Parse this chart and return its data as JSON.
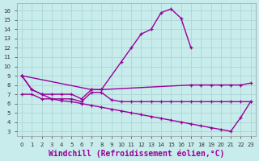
{
  "background_color": "#c8ecec",
  "grid_color": "#b0d8d8",
  "line_color": "#990099",
  "xlabel": "Windchill (Refroidissement éolien,°C)",
  "xlim": [
    -0.5,
    23.5
  ],
  "ylim": [
    2.5,
    16.8
  ],
  "yticks": [
    3,
    4,
    5,
    6,
    7,
    8,
    9,
    10,
    11,
    12,
    13,
    14,
    15,
    16
  ],
  "xticks": [
    0,
    1,
    2,
    3,
    4,
    5,
    6,
    7,
    8,
    9,
    10,
    11,
    12,
    13,
    14,
    15,
    16,
    17,
    18,
    19,
    20,
    21,
    22,
    23
  ],
  "series": [
    {
      "x": [
        0,
        1,
        2,
        3,
        4,
        5,
        6,
        7,
        8,
        10,
        11,
        12,
        13,
        14,
        15,
        16,
        17
      ],
      "y": [
        9,
        7.5,
        7.0,
        7.0,
        7.0,
        7.0,
        6.5,
        7.5,
        7.5,
        10.5,
        12.0,
        13.5,
        14.0,
        15.8,
        16.2,
        15.2,
        12.0
      ]
    },
    {
      "x": [
        0,
        7,
        8,
        17,
        18,
        19,
        20,
        21,
        22,
        23
      ],
      "y": [
        9,
        7.5,
        7.5,
        8.0,
        8.0,
        8.0,
        8.0,
        8.0,
        8.0,
        8.2
      ]
    },
    {
      "x": [
        0,
        1,
        2,
        3,
        4,
        5,
        6,
        7,
        8,
        9,
        10,
        11,
        12,
        13,
        14,
        15,
        16,
        17,
        18,
        19,
        20,
        21,
        22,
        23
      ],
      "y": [
        7.0,
        7.0,
        6.5,
        6.5,
        6.5,
        6.5,
        6.2,
        7.2,
        7.2,
        6.4,
        6.2,
        6.2,
        6.2,
        6.2,
        6.2,
        6.2,
        6.2,
        6.2,
        6.2,
        6.2,
        6.2,
        6.2,
        6.2,
        6.2
      ]
    },
    {
      "x": [
        0,
        1,
        2,
        3,
        4,
        5,
        6,
        7,
        8,
        9,
        10,
        11,
        12,
        13,
        14,
        15,
        16,
        17,
        18,
        19,
        20,
        21,
        22,
        23
      ],
      "y": [
        9.0,
        7.5,
        7.0,
        6.5,
        6.3,
        6.2,
        6.0,
        5.8,
        5.6,
        5.4,
        5.2,
        5.0,
        4.8,
        4.6,
        4.4,
        4.2,
        4.0,
        3.8,
        3.6,
        3.4,
        3.2,
        3.0,
        4.5,
        6.2
      ]
    }
  ]
}
